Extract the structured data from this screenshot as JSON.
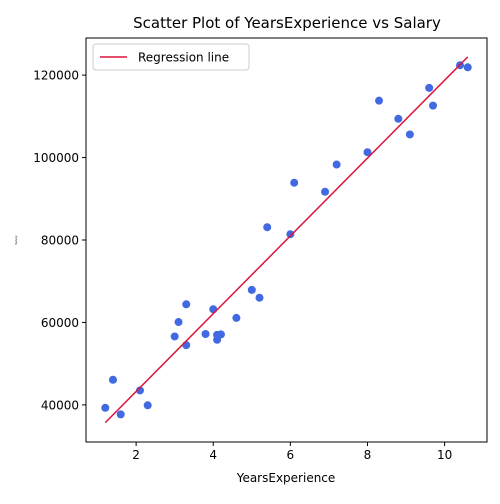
{
  "chart_data": {
    "type": "scatter",
    "title": "Scatter Plot of YearsExperience vs Salary",
    "xlabel": "YearsExperience",
    "ylabel": "Salary",
    "xlim": [
      0.7,
      11.1
    ],
    "ylim": [
      31000,
      129000
    ],
    "xticks": [
      2,
      4,
      6,
      8,
      10
    ],
    "xtick_labels": [
      "2",
      "4",
      "6",
      "8",
      "10"
    ],
    "yticks": [
      40000,
      60000,
      80000,
      100000,
      120000
    ],
    "ytick_labels": [
      "40000",
      "60000",
      "80000",
      "100000",
      "120000"
    ],
    "grid": false,
    "legend": {
      "position": "top-left",
      "entries": [
        "Regression line"
      ]
    },
    "series": [
      {
        "kind": "scatter",
        "color": "#4169e1",
        "x": [
          1.2,
          1.4,
          1.6,
          2.1,
          2.3,
          3.0,
          3.1,
          3.3,
          3.3,
          3.8,
          4.0,
          4.1,
          4.1,
          4.2,
          4.6,
          5.0,
          5.2,
          5.4,
          6.0,
          6.1,
          6.9,
          7.2,
          8.0,
          8.3,
          8.8,
          9.1,
          9.6,
          9.7,
          10.4,
          10.6
        ],
        "y": [
          39300,
          46100,
          37700,
          43500,
          39900,
          56600,
          60100,
          54500,
          64400,
          57200,
          63200,
          55800,
          57000,
          57100,
          61100,
          67900,
          66000,
          83100,
          81400,
          93900,
          91700,
          98300,
          101300,
          113800,
          109400,
          105600,
          116900,
          112600,
          122400,
          121900
        ]
      },
      {
        "kind": "line",
        "name": "Regression line",
        "color": "#dc143c",
        "x": [
          1.2,
          10.6
        ],
        "y": [
          35700,
          124400
        ]
      }
    ]
  }
}
